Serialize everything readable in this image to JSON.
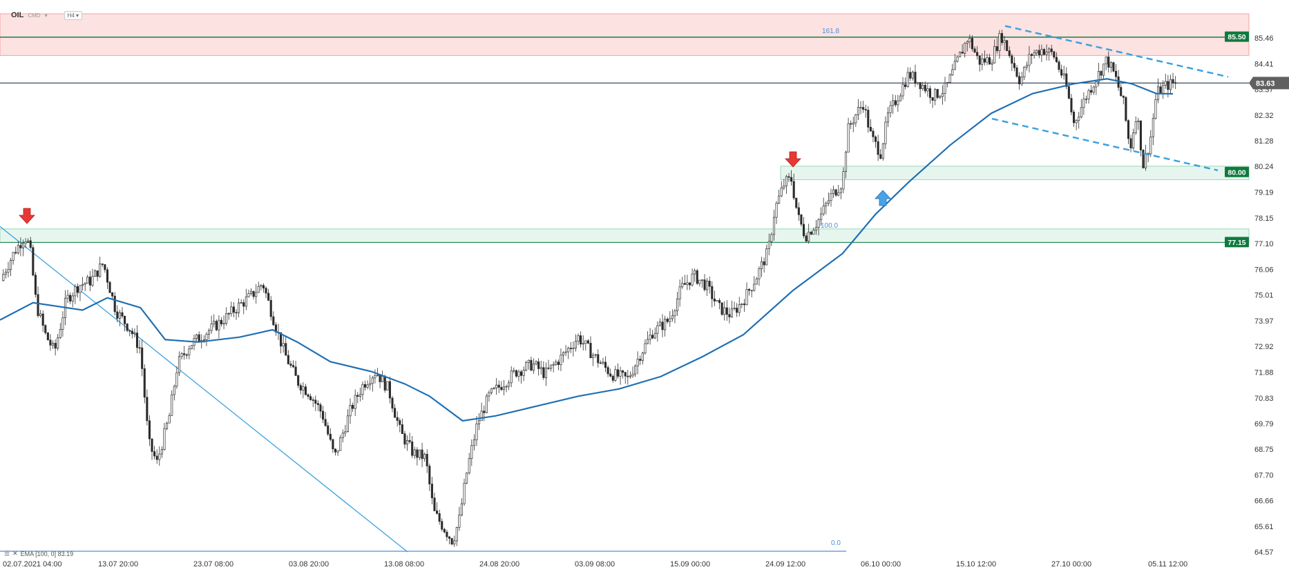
{
  "toolbar": {
    "symbol": "OIL",
    "type": "CMD",
    "timeframe": "H4"
  },
  "indicator": {
    "label": "EMA [100, 0] 83.19"
  },
  "chart_data": {
    "type": "candlestick",
    "ylim": [
      64.57,
      86.5
    ],
    "y_ticks": [
      85.46,
      84.41,
      83.37,
      82.32,
      81.28,
      80.24,
      79.19,
      78.15,
      77.1,
      76.06,
      75.01,
      73.97,
      72.92,
      71.88,
      70.83,
      69.79,
      68.75,
      67.7,
      66.66,
      65.61,
      64.57
    ],
    "x_ticks": [
      "02.07.2021  04:00",
      "13.07  20:00",
      "23.07  08:00",
      "03.08  20:00",
      "13.08  08:00",
      "24.08  20:00",
      "03.09  08:00",
      "15.09  00:00",
      "24.09  12:00",
      "06.10  00:00",
      "15.10  12:00",
      "27.10  00:00",
      "05.11  12:00"
    ],
    "price_path": [
      [
        0,
        75.6
      ],
      [
        18,
        76.8
      ],
      [
        30,
        77.4
      ],
      [
        36,
        77.0
      ],
      [
        44,
        74.6
      ],
      [
        55,
        73.4
      ],
      [
        66,
        72.7
      ],
      [
        80,
        74.8
      ],
      [
        95,
        75.4
      ],
      [
        110,
        75.6
      ],
      [
        125,
        76.3
      ],
      [
        140,
        74.4
      ],
      [
        158,
        73.6
      ],
      [
        170,
        72.8
      ],
      [
        180,
        69.0
      ],
      [
        190,
        68.2
      ],
      [
        205,
        70.1
      ],
      [
        215,
        72.2
      ],
      [
        230,
        73.0
      ],
      [
        250,
        73.5
      ],
      [
        270,
        74.0
      ],
      [
        290,
        74.6
      ],
      [
        305,
        75.0
      ],
      [
        318,
        75.5
      ],
      [
        335,
        73.6
      ],
      [
        345,
        72.6
      ],
      [
        360,
        71.5
      ],
      [
        375,
        71.0
      ],
      [
        390,
        70.2
      ],
      [
        405,
        68.4
      ],
      [
        425,
        70.4
      ],
      [
        440,
        71.4
      ],
      [
        455,
        71.9
      ],
      [
        470,
        71.2
      ],
      [
        485,
        69.4
      ],
      [
        500,
        68.6
      ],
      [
        515,
        68.4
      ],
      [
        525,
        66.2
      ],
      [
        540,
        65.4
      ],
      [
        548,
        65.0
      ],
      [
        556,
        65.9
      ],
      [
        566,
        68.0
      ],
      [
        578,
        69.8
      ],
      [
        592,
        70.9
      ],
      [
        608,
        71.4
      ],
      [
        625,
        71.9
      ],
      [
        645,
        72.2
      ],
      [
        660,
        71.8
      ],
      [
        680,
        72.5
      ],
      [
        700,
        73.3
      ],
      [
        720,
        72.5
      ],
      [
        740,
        71.8
      ],
      [
        760,
        71.6
      ],
      [
        775,
        72.6
      ],
      [
        790,
        73.5
      ],
      [
        810,
        74.0
      ],
      [
        825,
        75.3
      ],
      [
        840,
        75.8
      ],
      [
        855,
        75.4
      ],
      [
        870,
        74.5
      ],
      [
        885,
        74.2
      ],
      [
        900,
        74.8
      ],
      [
        915,
        75.7
      ],
      [
        930,
        76.8
      ],
      [
        938,
        78.5
      ],
      [
        950,
        79.6
      ],
      [
        958,
        79.7
      ],
      [
        966,
        78.2
      ],
      [
        975,
        77.4
      ],
      [
        990,
        78.0
      ],
      [
        1005,
        79.0
      ],
      [
        1020,
        79.6
      ],
      [
        1026,
        81.7
      ],
      [
        1035,
        82.3
      ],
      [
        1045,
        82.8
      ],
      [
        1055,
        81.4
      ],
      [
        1066,
        80.8
      ],
      [
        1075,
        82.3
      ],
      [
        1090,
        83.3
      ],
      [
        1100,
        84.0
      ],
      [
        1115,
        83.6
      ],
      [
        1130,
        83.1
      ],
      [
        1145,
        83.4
      ],
      [
        1160,
        84.6
      ],
      [
        1172,
        85.5
      ],
      [
        1185,
        84.5
      ],
      [
        1200,
        84.6
      ],
      [
        1212,
        85.6
      ],
      [
        1222,
        84.8
      ],
      [
        1235,
        83.7
      ],
      [
        1248,
        84.8
      ],
      [
        1262,
        85.0
      ],
      [
        1275,
        84.8
      ],
      [
        1290,
        83.6
      ],
      [
        1300,
        82.0
      ],
      [
        1315,
        83.1
      ],
      [
        1330,
        84.0
      ],
      [
        1340,
        84.6
      ],
      [
        1350,
        83.9
      ],
      [
        1360,
        82.8
      ],
      [
        1368,
        80.9
      ],
      [
        1376,
        82.5
      ],
      [
        1384,
        80.3
      ],
      [
        1392,
        81.2
      ],
      [
        1400,
        83.2
      ],
      [
        1410,
        83.5
      ],
      [
        1420,
        83.63
      ]
    ],
    "ema": [
      [
        0,
        74.0
      ],
      [
        40,
        74.7
      ],
      [
        100,
        74.4
      ],
      [
        130,
        74.9
      ],
      [
        170,
        74.5
      ],
      [
        200,
        73.2
      ],
      [
        240,
        73.1
      ],
      [
        290,
        73.3
      ],
      [
        330,
        73.6
      ],
      [
        360,
        73.1
      ],
      [
        400,
        72.3
      ],
      [
        450,
        71.9
      ],
      [
        490,
        71.4
      ],
      [
        520,
        70.9
      ],
      [
        560,
        69.9
      ],
      [
        600,
        70.1
      ],
      [
        650,
        70.5
      ],
      [
        700,
        70.9
      ],
      [
        750,
        71.2
      ],
      [
        800,
        71.7
      ],
      [
        850,
        72.5
      ],
      [
        900,
        73.4
      ],
      [
        960,
        75.2
      ],
      [
        1020,
        76.7
      ],
      [
        1060,
        78.3
      ],
      [
        1100,
        79.6
      ],
      [
        1150,
        81.1
      ],
      [
        1200,
        82.4
      ],
      [
        1250,
        83.2
      ],
      [
        1300,
        83.6
      ],
      [
        1340,
        83.8
      ],
      [
        1370,
        83.6
      ],
      [
        1400,
        83.2
      ],
      [
        1420,
        83.19
      ]
    ],
    "levels": {
      "current": 83.63,
      "upper": 85.5,
      "support": 80.0,
      "lower": 77.15
    },
    "labels": {
      "current": "83.63",
      "upper": "85.50",
      "support": "80.00",
      "lower": "77.15",
      "fib_top": "161.8",
      "fib_mid": "100.0",
      "fib_bottom": "0.0"
    },
    "colors": {
      "price_label": "#606060",
      "level_label": "#0f7a3e",
      "ema": "#1f6fb3",
      "trend": "#3aa2e0",
      "arrow_down": "#e53935",
      "arrow_up": "#4aa3e6",
      "fib": "#4a8fd6"
    }
  }
}
